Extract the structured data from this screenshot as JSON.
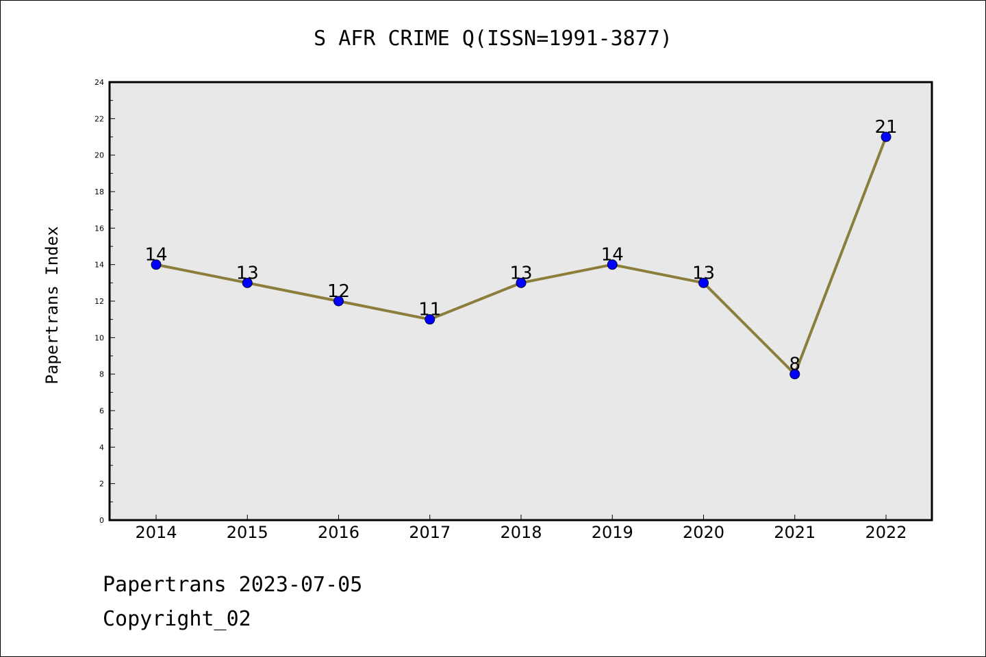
{
  "chart_data": {
    "type": "line",
    "title": "S AFR CRIME Q(ISSN=1991-3877)",
    "xlabel": "",
    "ylabel": "Papertrans Index",
    "categories": [
      "2014",
      "2015",
      "2016",
      "2017",
      "2018",
      "2019",
      "2020",
      "2021",
      "2022"
    ],
    "values": [
      14,
      13,
      12,
      11,
      13,
      14,
      13,
      8,
      21
    ],
    "ylim": [
      0,
      24
    ],
    "yticks": [
      "0",
      "2",
      "4",
      "6",
      "8",
      "10",
      "12",
      "14",
      "16",
      "18",
      "20",
      "22",
      "24"
    ],
    "grid": false,
    "legend": "none",
    "line_color": "#8b7d3a",
    "marker_color": "#0000ff",
    "plot_background": "#e8e8e8"
  },
  "footer": {
    "line1": "Papertrans 2023-07-05",
    "line2": "Copyright_02"
  }
}
